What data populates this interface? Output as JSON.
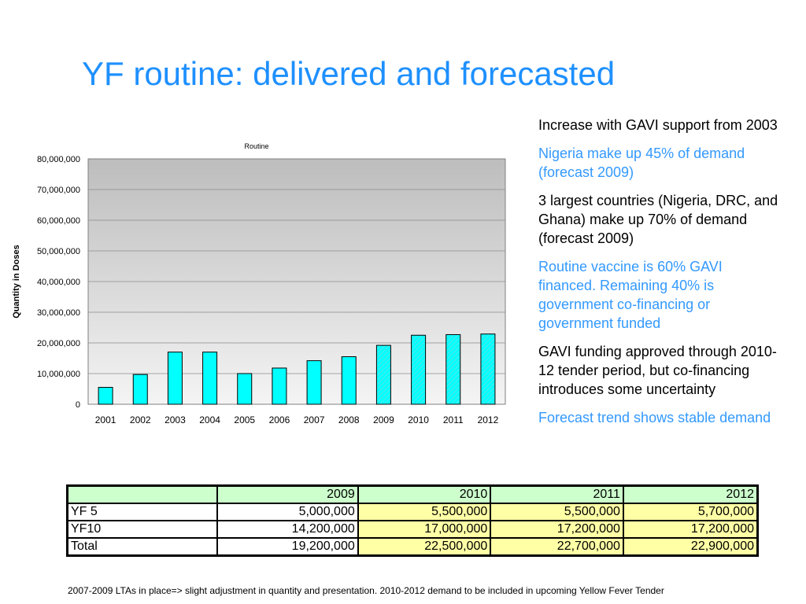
{
  "slide": {
    "title": "YF routine: delivered and forecasted"
  },
  "bullets": [
    {
      "text": "Increase with GAVI support from 2003",
      "color": "#000000"
    },
    {
      "text": "Nigeria make up 45% of demand (forecast 2009)",
      "color": "#3399ff"
    },
    {
      "text": "3 largest countries (Nigeria, DRC, and Ghana) make up 70% of demand (forecast 2009)",
      "color": "#000000"
    },
    {
      "text": "Routine vaccine is 60% GAVI financed. Remaining 40% is government co-financing or government funded",
      "color": "#3399ff"
    },
    {
      "text": "GAVI funding approved through 2010-12 tender period, but co-financing introduces some uncertainty",
      "color": "#000000"
    },
    {
      "text": "Forecast trend shows stable demand",
      "color": "#3399ff"
    }
  ],
  "chart_data": {
    "type": "bar",
    "title": "Routine",
    "xlabel": "",
    "ylabel": "Quantity in Doses",
    "ylim": [
      0,
      80000000
    ],
    "yticks": [
      "0",
      "10,000,000",
      "20,000,000",
      "30,000,000",
      "40,000,000",
      "50,000,000",
      "60,000,000",
      "70,000,000",
      "80,000,000"
    ],
    "categories": [
      "2001",
      "2002",
      "2003",
      "2004",
      "2005",
      "2006",
      "2007",
      "2008",
      "2009",
      "2010",
      "2011",
      "2012"
    ],
    "values": [
      5500000,
      9700000,
      17000000,
      17000000,
      10000000,
      11800000,
      14200000,
      15500000,
      19200000,
      22500000,
      22700000,
      22900000
    ],
    "forecast_from": "2009",
    "grid": true,
    "legend": "none",
    "colors": {
      "bar": "#00ffff",
      "forecast_hatch": "#6fdede",
      "plot_top": "#bdbdbd",
      "plot_bottom": "#f4f4f4"
    }
  },
  "table": {
    "headers": [
      "",
      "2009",
      "2010",
      "2011",
      "2012"
    ],
    "rows": [
      {
        "label": "YF 5",
        "values": [
          "5,000,000",
          "5,500,000",
          "5,500,000",
          "5,700,000"
        ]
      },
      {
        "label": "YF10",
        "values": [
          "14,200,000",
          "17,000,000",
          "17,200,000",
          "17,200,000"
        ]
      },
      {
        "label": "Total",
        "values": [
          "19,200,000",
          "22,500,000",
          "22,700,000",
          "22,900,000"
        ]
      }
    ],
    "colors": {
      "header": "#ccffcc",
      "forecast": "#ffffa6"
    }
  },
  "footnote": "2007-2009 LTAs in place=> slight adjustment in quantity and presentation. 2010-2012 demand  to be included in upcoming Yellow Fever Tender"
}
